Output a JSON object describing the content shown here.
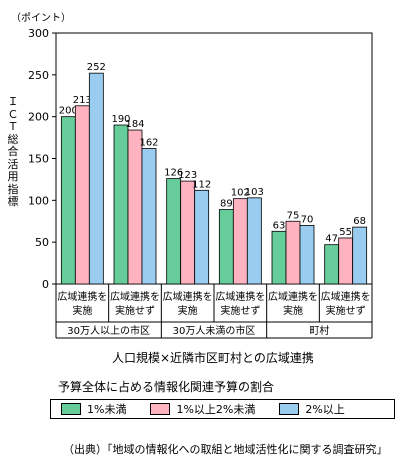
{
  "chart_data": {
    "type": "bar",
    "unit_label": "（ポイント）",
    "ylabel": "ＩＣＴ総合活用指標",
    "xlabel": "人口規模×近隣市区町村との広域連携",
    "ylim": [
      0,
      300
    ],
    "yticks": [
      "0",
      "50",
      "100",
      "150",
      "200",
      "250",
      "300"
    ],
    "groups": [
      {
        "label": "30万人以上の市区",
        "subs": [
          "広域連携を実施",
          "広域連携を実施せず"
        ]
      },
      {
        "label": "30万人未満の市区",
        "subs": [
          "広域連携を実施",
          "広域連携を実施せず"
        ]
      },
      {
        "label": "町村",
        "subs": [
          "広域連携を実施",
          "広域連携を実施せず"
        ]
      }
    ],
    "categories": [
      "30万人以上の市区 広域連携を実施",
      "30万人以上の市区 広域連携を実施せず",
      "30万人未満の市区 広域連携を実施",
      "30万人未満の市区 広域連携を実施せず",
      "町村 広域連携を実施",
      "町村 広域連携を実施せず"
    ],
    "series": [
      {
        "name": "1%未満",
        "color": "#66cc99",
        "values": [
          200,
          190,
          126,
          89,
          63,
          47
        ]
      },
      {
        "name": "1%以上2%未満",
        "color": "#ffb3c1",
        "values": [
          213,
          184,
          123,
          102,
          75,
          55
        ]
      },
      {
        "name": "2%以上",
        "color": "#99ccee",
        "values": [
          252,
          162,
          112,
          103,
          70,
          68
        ]
      }
    ],
    "legend_title": "予算全体に占める情報化関連予算の割合",
    "grid": false,
    "legend_position": "bottom"
  },
  "source": "（出典）「地域の情報化への取組と地域活性化に関する調査研究」"
}
